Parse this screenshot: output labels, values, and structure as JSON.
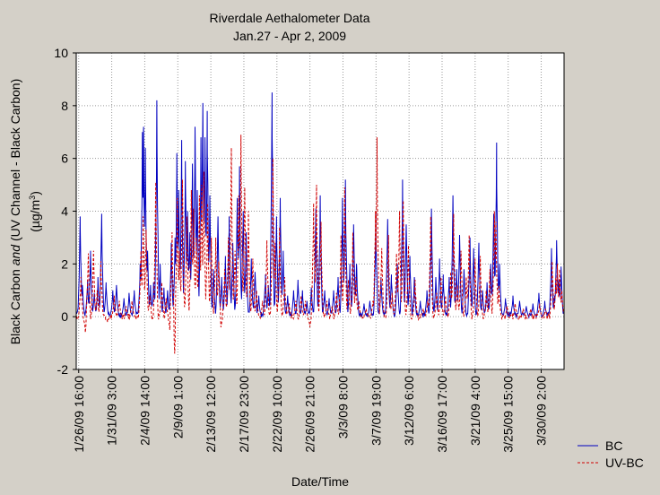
{
  "chart_data": {
    "type": "line",
    "title": "Riverdale Aethalometer Data",
    "subtitle": "Jan.27 - Apr 2, 2009",
    "xlabel": "Date/Time",
    "ylabel_line1_pre": "Black Carbon ",
    "ylabel_line1_em": "and",
    "ylabel_line1_post": " (UV Channel - Black Carbon)",
    "ylabel_line2_pre": "(µg/m",
    "ylabel_line2_sup": "3",
    "ylabel_line2_post": ")",
    "ylim": [
      -2,
      10
    ],
    "yticks": [
      -2,
      0,
      2,
      4,
      6,
      8,
      10
    ],
    "ytick_labels": [
      "-2",
      "0",
      "2",
      "4",
      "6",
      "8",
      "10"
    ],
    "x_range_days": [
      -0.333,
      65.5
    ],
    "xtick_labels": [
      "1/26/09 16:00",
      "1/31/09 3:00",
      "2/4/09 14:00",
      "2/9/09 1:00",
      "2/13/09 12:00",
      "2/17/09 23:00",
      "2/22/09 10:00",
      "2/26/09 21:00",
      "3/3/09 8:00",
      "3/7/09 19:00",
      "3/12/09 6:00",
      "3/16/09 17:00",
      "3/21/09 4:00",
      "3/25/09 15:00",
      "3/30/09 2:00"
    ],
    "xtick_days": [
      0,
      4.458,
      8.917,
      13.375,
      17.833,
      22.292,
      26.75,
      31.208,
      35.667,
      40.125,
      44.583,
      49.042,
      53.5,
      57.958,
      62.417
    ],
    "grid": true,
    "legend_position": "bottom-right",
    "series": [
      {
        "name": "BC",
        "color": "#0000c0",
        "style": "solid",
        "peaks": [
          [
            -0.1,
            0.3
          ],
          [
            0.2,
            3.8
          ],
          [
            0.5,
            1.2
          ],
          [
            1.2,
            1.4
          ],
          [
            1.6,
            2.5
          ],
          [
            2.1,
            0.9
          ],
          [
            2.6,
            1.5
          ],
          [
            3.1,
            3.9
          ],
          [
            3.7,
            1.3
          ],
          [
            4.6,
            1.0
          ],
          [
            5.1,
            1.2
          ],
          [
            6.1,
            0.7
          ],
          [
            6.8,
            0.9
          ],
          [
            7.5,
            1.0
          ],
          [
            8.3,
            2.0
          ],
          [
            8.6,
            7.0
          ],
          [
            8.75,
            7.2
          ],
          [
            9.0,
            6.4
          ],
          [
            9.3,
            2.5
          ],
          [
            9.7,
            1.2
          ],
          [
            10.1,
            1.3
          ],
          [
            10.55,
            8.2
          ],
          [
            11.0,
            2.0
          ],
          [
            11.5,
            1.1
          ],
          [
            12.0,
            1.0
          ],
          [
            12.5,
            2.8
          ],
          [
            13.0,
            3.0
          ],
          [
            13.25,
            6.2
          ],
          [
            13.5,
            4.8
          ],
          [
            13.9,
            6.7
          ],
          [
            14.4,
            5.9
          ],
          [
            14.7,
            4.0
          ],
          [
            15.0,
            3.2
          ],
          [
            15.35,
            5.8
          ],
          [
            15.7,
            7.2
          ],
          [
            16.0,
            4.8
          ],
          [
            16.5,
            6.8
          ],
          [
            16.75,
            8.1
          ],
          [
            17.05,
            6.8
          ],
          [
            17.35,
            7.8
          ],
          [
            17.7,
            4.6
          ],
          [
            18.2,
            1.8
          ],
          [
            18.8,
            3.8
          ],
          [
            19.3,
            1.5
          ],
          [
            19.8,
            2.3
          ],
          [
            20.3,
            3.8
          ],
          [
            20.8,
            2.8
          ],
          [
            21.4,
            4.5
          ],
          [
            21.7,
            5.7
          ],
          [
            22.2,
            4.0
          ],
          [
            22.6,
            3.2
          ],
          [
            23.3,
            2.2
          ],
          [
            23.8,
            1.7
          ],
          [
            24.3,
            0.8
          ],
          [
            25.2,
            1.6
          ],
          [
            25.6,
            1.2
          ],
          [
            26.1,
            8.5
          ],
          [
            26.7,
            3.8
          ],
          [
            27.2,
            4.5
          ],
          [
            27.6,
            2.5
          ],
          [
            28.2,
            0.8
          ],
          [
            29.0,
            1.0
          ],
          [
            29.6,
            1.4
          ],
          [
            30.2,
            1.0
          ],
          [
            30.8,
            0.6
          ],
          [
            31.4,
            1.1
          ],
          [
            32.0,
            4.1
          ],
          [
            32.6,
            4.6
          ],
          [
            33.2,
            1.0
          ],
          [
            33.8,
            0.7
          ],
          [
            34.4,
            1.0
          ],
          [
            35.0,
            1.5
          ],
          [
            35.6,
            4.5
          ],
          [
            36.0,
            5.2
          ],
          [
            36.6,
            2.0
          ],
          [
            37.1,
            3.5
          ],
          [
            37.5,
            2.0
          ],
          [
            38.5,
            0.5
          ],
          [
            39.3,
            0.6
          ],
          [
            40.1,
            3.9
          ],
          [
            40.8,
            1.5
          ],
          [
            41.7,
            3.7
          ],
          [
            42.2,
            1.6
          ],
          [
            43.0,
            2.0
          ],
          [
            43.7,
            5.2
          ],
          [
            44.2,
            3.5
          ],
          [
            44.7,
            2.3
          ],
          [
            45.3,
            1.5
          ],
          [
            46.1,
            0.6
          ],
          [
            47.0,
            1.0
          ],
          [
            47.6,
            4.1
          ],
          [
            48.2,
            1.5
          ],
          [
            48.7,
            2.2
          ],
          [
            49.2,
            1.6
          ],
          [
            50.0,
            1.5
          ],
          [
            50.5,
            4.6
          ],
          [
            51.0,
            1.8
          ],
          [
            51.4,
            3.1
          ],
          [
            52.0,
            1.8
          ],
          [
            52.8,
            3.0
          ],
          [
            53.3,
            2.6
          ],
          [
            54.0,
            2.8
          ],
          [
            54.5,
            1.0
          ],
          [
            55.1,
            1.3
          ],
          [
            55.6,
            2.0
          ],
          [
            56.0,
            3.9
          ],
          [
            56.4,
            6.6
          ],
          [
            56.8,
            2.0
          ],
          [
            57.6,
            0.7
          ],
          [
            58.6,
            0.8
          ],
          [
            59.5,
            0.6
          ],
          [
            60.4,
            0.4
          ],
          [
            61.3,
            0.5
          ],
          [
            62.1,
            0.9
          ],
          [
            62.9,
            0.6
          ],
          [
            63.8,
            2.6
          ],
          [
            64.2,
            0.8
          ],
          [
            64.5,
            2.9
          ],
          [
            64.8,
            1.4
          ],
          [
            65.1,
            1.9
          ]
        ]
      },
      {
        "name": "UV-BC",
        "color": "#d00000",
        "style": "dashed",
        "peaks": [
          [
            0.3,
            1.5
          ],
          [
            0.9,
            -0.6
          ],
          [
            1.3,
            2.4
          ],
          [
            2.0,
            2.5
          ],
          [
            2.5,
            1.0
          ],
          [
            3.0,
            2.1
          ],
          [
            3.9,
            -0.2
          ],
          [
            4.8,
            0.8
          ],
          [
            5.5,
            0.6
          ],
          [
            6.4,
            0.4
          ],
          [
            7.2,
            0.6
          ],
          [
            8.4,
            2.5
          ],
          [
            8.7,
            3.8
          ],
          [
            9.1,
            3.3
          ],
          [
            9.6,
            0.8
          ],
          [
            10.4,
            5.1
          ],
          [
            11.2,
            1.3
          ],
          [
            11.8,
            0.7
          ],
          [
            12.3,
            -0.5
          ],
          [
            12.6,
            3.2
          ],
          [
            12.95,
            -1.4
          ],
          [
            13.3,
            4.5
          ],
          [
            13.6,
            2.5
          ],
          [
            14.0,
            5.2
          ],
          [
            14.6,
            3.8
          ],
          [
            15.2,
            4.8
          ],
          [
            15.5,
            4.1
          ],
          [
            15.9,
            3.0
          ],
          [
            16.3,
            4.6
          ],
          [
            16.6,
            5.0
          ],
          [
            16.9,
            5.5
          ],
          [
            17.4,
            4.3
          ],
          [
            17.9,
            3.0
          ],
          [
            18.5,
            3.0
          ],
          [
            18.9,
            2.1
          ],
          [
            19.2,
            -0.4
          ],
          [
            19.7,
            1.8
          ],
          [
            20.2,
            3.0
          ],
          [
            20.6,
            6.4
          ],
          [
            21.1,
            2.5
          ],
          [
            21.6,
            4.6
          ],
          [
            21.9,
            6.9
          ],
          [
            22.4,
            4.9
          ],
          [
            22.9,
            4.0
          ],
          [
            23.5,
            2.2
          ],
          [
            24.0,
            1.0
          ],
          [
            24.8,
            0.6
          ],
          [
            25.4,
            2.9
          ],
          [
            26.2,
            6.0
          ],
          [
            26.5,
            2.8
          ],
          [
            27.1,
            3.4
          ],
          [
            27.8,
            1.5
          ],
          [
            28.4,
            0.5
          ],
          [
            29.3,
            0.6
          ],
          [
            30.0,
            0.8
          ],
          [
            30.6,
            0.6
          ],
          [
            31.2,
            -0.4
          ],
          [
            31.7,
            4.3
          ],
          [
            32.1,
            5.0
          ],
          [
            32.7,
            3.6
          ],
          [
            33.5,
            0.6
          ],
          [
            34.2,
            0.4
          ],
          [
            34.8,
            0.9
          ],
          [
            35.4,
            3.1
          ],
          [
            35.9,
            4.9
          ],
          [
            36.4,
            1.4
          ],
          [
            37.0,
            3.2
          ],
          [
            37.4,
            1.5
          ],
          [
            37.8,
            0.6
          ],
          [
            38.8,
            0.3
          ],
          [
            39.7,
            0.6
          ],
          [
            40.05,
            4.0
          ],
          [
            40.25,
            6.8
          ],
          [
            40.9,
            2.6
          ],
          [
            41.8,
            3.1
          ],
          [
            42.3,
            0.9
          ],
          [
            42.9,
            2.4
          ],
          [
            43.3,
            4.0
          ],
          [
            43.8,
            4.4
          ],
          [
            44.5,
            2.7
          ],
          [
            45.4,
            1.4
          ],
          [
            46.5,
            0.3
          ],
          [
            47.1,
            0.6
          ],
          [
            47.5,
            3.8
          ],
          [
            48.3,
            0.9
          ],
          [
            48.9,
            1.5
          ],
          [
            49.5,
            0.8
          ],
          [
            50.2,
            1.7
          ],
          [
            50.6,
            3.9
          ],
          [
            51.1,
            1.2
          ],
          [
            51.6,
            2.5
          ],
          [
            52.3,
            1.5
          ],
          [
            52.7,
            3.1
          ],
          [
            53.5,
            2.2
          ],
          [
            54.2,
            2.3
          ],
          [
            55.0,
            1.0
          ],
          [
            55.5,
            1.8
          ],
          [
            56.1,
            4.0
          ],
          [
            56.3,
            3.6
          ],
          [
            56.7,
            1.2
          ],
          [
            57.8,
            0.4
          ],
          [
            58.9,
            0.5
          ],
          [
            60.0,
            0.3
          ],
          [
            61.0,
            0.3
          ],
          [
            62.2,
            0.5
          ],
          [
            63.0,
            0.3
          ],
          [
            63.9,
            2.1
          ],
          [
            64.4,
            1.5
          ],
          [
            64.6,
            2.0
          ],
          [
            64.9,
            1.8
          ],
          [
            65.2,
            1.0
          ]
        ]
      }
    ]
  }
}
